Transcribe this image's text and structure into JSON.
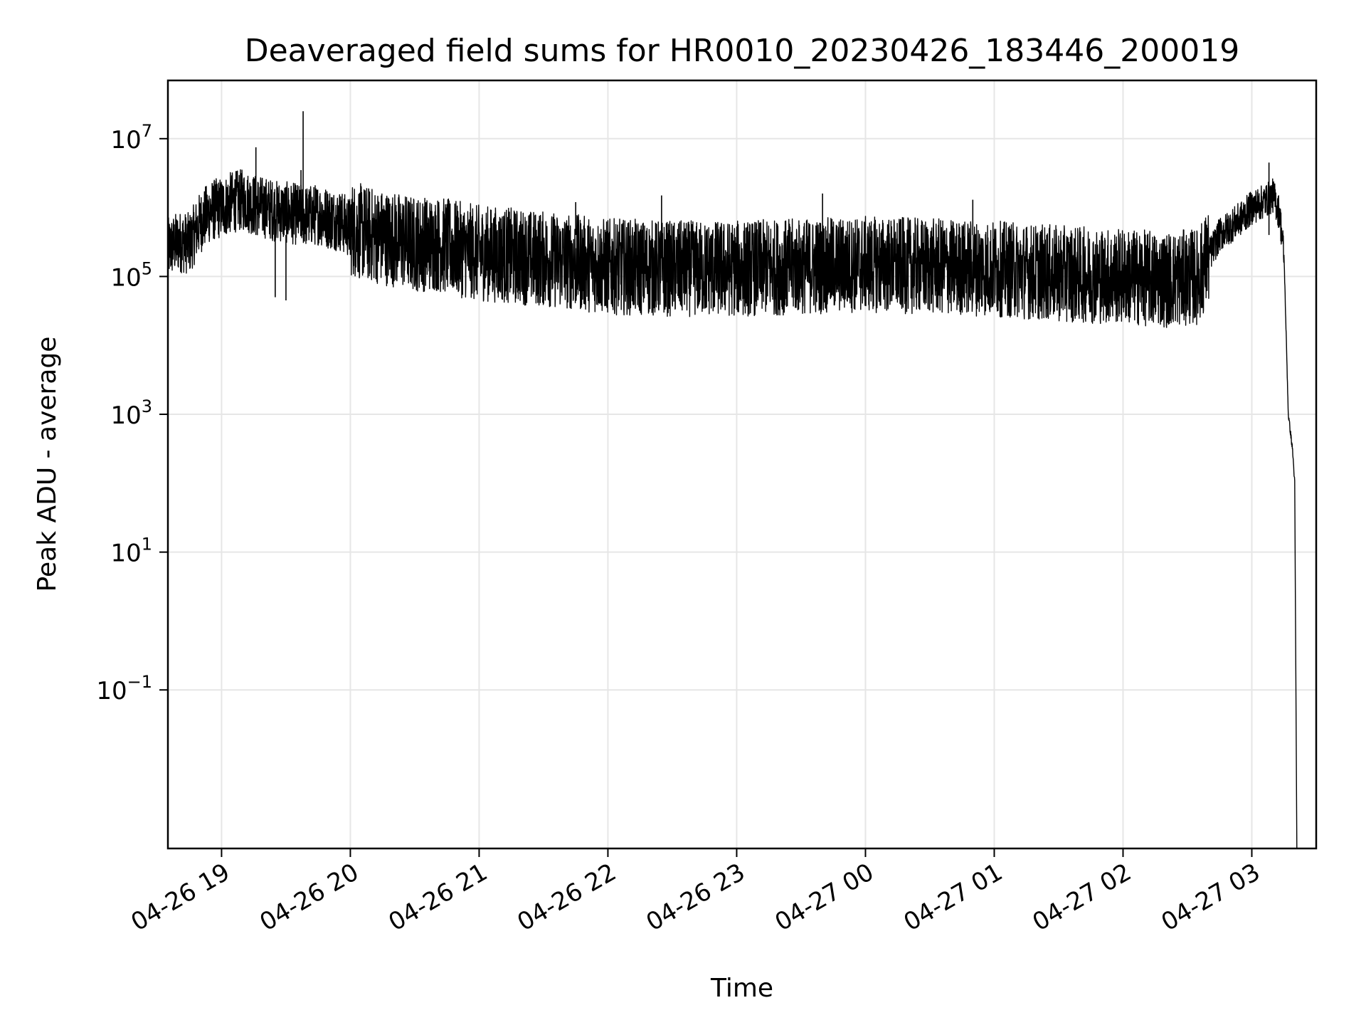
{
  "chart_data": {
    "type": "line",
    "title": "Deaveraged field sums for HR0010_20230426_183446_200019",
    "xlabel": "Time",
    "ylabel": "Peak ADU - average",
    "x_scale": "time",
    "y_scale": "log",
    "xlim": [
      "04-26 18:35",
      "04-27 03:30"
    ],
    "ylim": [
      0.0005,
      70000000
    ],
    "grid": true,
    "x_ticks": [
      {
        "value": "04-26 19:00",
        "label": "04-26 19"
      },
      {
        "value": "04-26 20:00",
        "label": "04-26 20"
      },
      {
        "value": "04-26 21:00",
        "label": "04-26 21"
      },
      {
        "value": "04-26 22:00",
        "label": "04-26 22"
      },
      {
        "value": "04-26 23:00",
        "label": "04-26 23"
      },
      {
        "value": "04-27 00:00",
        "label": "04-27 00"
      },
      {
        "value": "04-27 01:00",
        "label": "04-27 01"
      },
      {
        "value": "04-27 02:00",
        "label": "04-27 02"
      },
      {
        "value": "04-27 03:00",
        "label": "04-27 03"
      }
    ],
    "y_ticks": [
      {
        "value": 10000000,
        "base": "10",
        "exp": "7"
      },
      {
        "value": 100000,
        "base": "10",
        "exp": "5"
      },
      {
        "value": 1000,
        "base": "10",
        "exp": "3"
      },
      {
        "value": 10,
        "base": "10",
        "exp": "1"
      },
      {
        "value": 0.1,
        "base": "10",
        "exp": "−1"
      }
    ],
    "series": [
      {
        "color": "#000000",
        "points": [
          [
            "04-26 18:35",
            250000
          ],
          [
            "04-26 18:40",
            320000
          ],
          [
            "04-26 18:45",
            300000
          ],
          [
            "04-26 18:50",
            600000
          ],
          [
            "04-26 18:55",
            900000
          ],
          [
            "04-26 19:00",
            1000000
          ],
          [
            "04-26 19:05",
            1200000
          ],
          [
            "04-26 19:10",
            1300000
          ],
          [
            "04-26 19:15",
            1100000
          ],
          [
            "04-26 19:20",
            1000000
          ],
          [
            "04-26 19:25",
            900000
          ],
          [
            "04-26 19:30",
            850000
          ],
          [
            "04-26 19:35",
            800000
          ],
          [
            "04-26 19:40",
            750000
          ],
          [
            "04-26 19:45",
            800000
          ],
          [
            "04-26 19:50",
            700000
          ],
          [
            "04-26 19:55",
            650000
          ],
          [
            "04-26 20:00",
            500000
          ],
          [
            "04-26 20:10",
            400000
          ],
          [
            "04-26 20:20",
            350000
          ],
          [
            "04-26 20:30",
            300000
          ],
          [
            "04-26 20:40",
            300000
          ],
          [
            "04-26 20:50",
            250000
          ],
          [
            "04-26 21:00",
            220000
          ],
          [
            "04-26 21:15",
            200000
          ],
          [
            "04-26 21:30",
            180000
          ],
          [
            "04-26 21:45",
            160000
          ],
          [
            "04-26 22:00",
            140000
          ],
          [
            "04-26 22:30",
            130000
          ],
          [
            "04-26 23:00",
            130000
          ],
          [
            "04-26 23:30",
            140000
          ],
          [
            "04-27 00:00",
            150000
          ],
          [
            "04-27 00:30",
            140000
          ],
          [
            "04-27 01:00",
            130000
          ],
          [
            "04-27 01:30",
            110000
          ],
          [
            "04-27 02:00",
            100000
          ],
          [
            "04-27 02:20",
            90000
          ],
          [
            "04-27 02:35",
            100000
          ],
          [
            "04-27 02:45",
            400000
          ],
          [
            "04-27 02:55",
            700000
          ],
          [
            "04-27 03:00",
            1000000
          ],
          [
            "04-27 03:05",
            1200000
          ],
          [
            "04-27 03:10",
            1500000
          ],
          [
            "04-27 03:13",
            800000
          ],
          [
            "04-27 03:15",
            200000
          ],
          [
            "04-27 03:17",
            1000
          ],
          [
            "04-27 03:19",
            300
          ],
          [
            "04-27 03:20",
            100
          ],
          [
            "04-27 03:21",
            0.0005
          ]
        ],
        "spikes": [
          [
            "04-26 19:16",
            7500000
          ],
          [
            "04-26 19:38",
            25000000
          ],
          [
            "04-26 19:37",
            3500000
          ],
          [
            "04-26 19:25",
            50000
          ],
          [
            "04-26 19:30",
            45000
          ],
          [
            "04-27 03:08",
            4500000
          ],
          [
            "04-26 21:45",
            1200000
          ],
          [
            "04-26 22:25",
            1500000
          ],
          [
            "04-26 23:40",
            1600000
          ],
          [
            "04-27 00:50",
            1300000
          ]
        ]
      }
    ]
  }
}
